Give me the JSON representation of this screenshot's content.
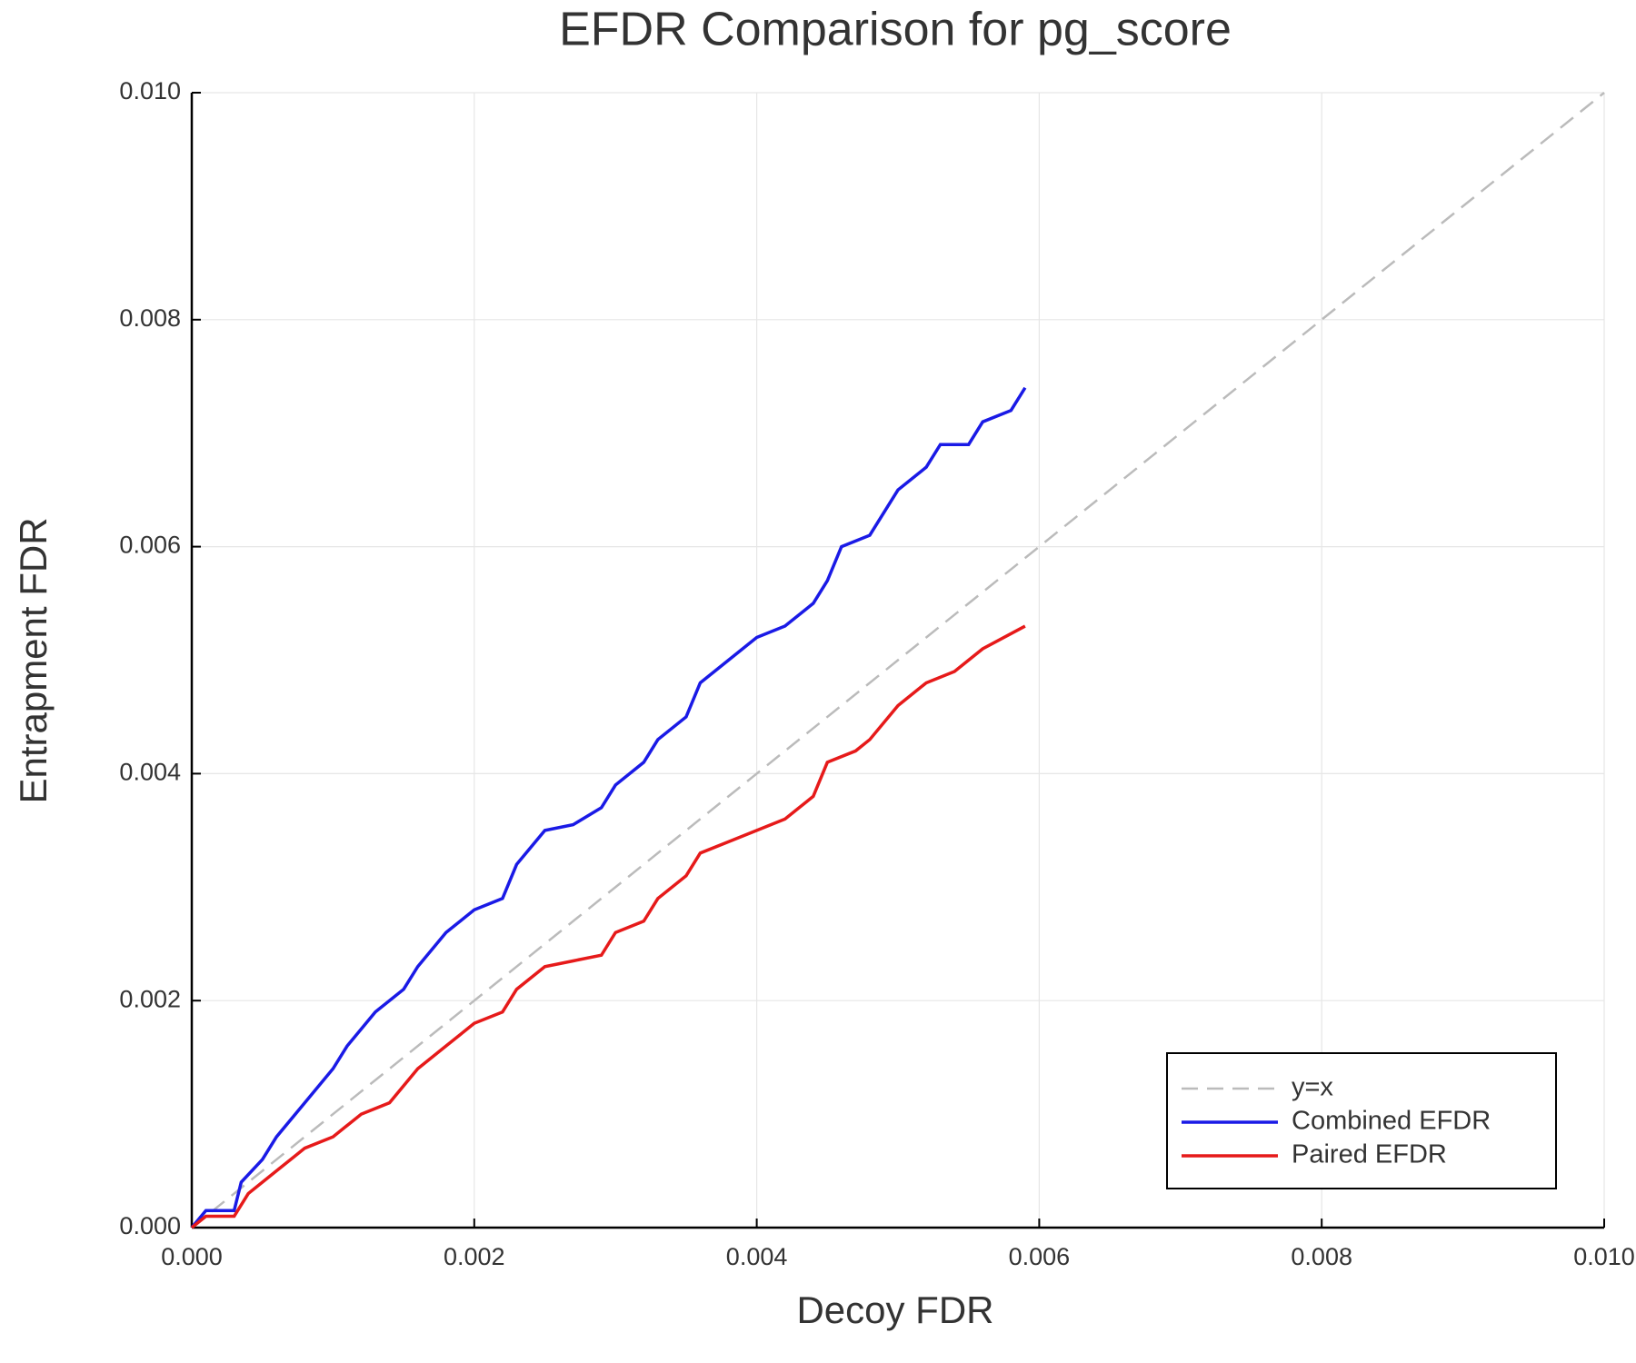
{
  "chart_data": {
    "type": "line",
    "title": "EFDR Comparison for pg_score",
    "x_label": "Decoy FDR",
    "y_label": "Entrapment FDR",
    "xlim": [
      0,
      0.01
    ],
    "ylim": [
      0,
      0.01
    ],
    "xticks": [
      {
        "value": 0,
        "label": "0.000"
      },
      0.002,
      0.004,
      0.006,
      0.008,
      {
        "value": 0.01,
        "label": "0.010"
      }
    ],
    "yticks": [
      {
        "value": 0,
        "label": "0.000"
      },
      0.002,
      0.004,
      0.006,
      0.008,
      {
        "value": 0.01,
        "label": "0.010"
      }
    ],
    "grid": true,
    "legend": "lower right",
    "series": [
      {
        "name": "y=x",
        "color": "#bbbbbb",
        "dashed": true,
        "x": [
          0,
          0.01
        ],
        "values": [
          0,
          0.01
        ]
      },
      {
        "name": "Combined EFDR",
        "color": "#1a1ae6",
        "dashed": false,
        "x": [
          0,
          0.0001,
          0.0003,
          0.00035,
          0.0005,
          0.0006,
          0.0008,
          0.001,
          0.0011,
          0.0013,
          0.0015,
          0.0016,
          0.0018,
          0.002,
          0.0022,
          0.0023,
          0.0025,
          0.0027,
          0.0029,
          0.003,
          0.0032,
          0.0033,
          0.0035,
          0.0036,
          0.0038,
          0.004,
          0.0042,
          0.0044,
          0.0045,
          0.0046,
          0.0048,
          0.005,
          0.0052,
          0.0053,
          0.0055,
          0.0056,
          0.0058,
          0.0059
        ],
        "values": [
          0,
          0.00015,
          0.00015,
          0.0004,
          0.0006,
          0.0008,
          0.0011,
          0.0014,
          0.0016,
          0.0019,
          0.0021,
          0.0023,
          0.0026,
          0.0028,
          0.0029,
          0.0032,
          0.0035,
          0.00355,
          0.0037,
          0.0039,
          0.0041,
          0.0043,
          0.0045,
          0.0048,
          0.005,
          0.0052,
          0.0053,
          0.0055,
          0.0057,
          0.006,
          0.0061,
          0.0065,
          0.0067,
          0.0069,
          0.0069,
          0.0071,
          0.0072,
          0.0074
        ]
      },
      {
        "name": "Paired EFDR",
        "color": "#e61a1a",
        "dashed": false,
        "x": [
          0,
          0.0001,
          0.0003,
          0.0004,
          0.0006,
          0.0008,
          0.001,
          0.0012,
          0.0014,
          0.0016,
          0.0018,
          0.002,
          0.0022,
          0.0023,
          0.0025,
          0.0027,
          0.0029,
          0.003,
          0.0032,
          0.0033,
          0.0035,
          0.0036,
          0.0038,
          0.004,
          0.0042,
          0.0044,
          0.0045,
          0.0047,
          0.0048,
          0.005,
          0.0052,
          0.0054,
          0.0056,
          0.0059
        ],
        "values": [
          0,
          0.0001,
          0.0001,
          0.0003,
          0.0005,
          0.0007,
          0.0008,
          0.001,
          0.0011,
          0.0014,
          0.0016,
          0.0018,
          0.0019,
          0.0021,
          0.0023,
          0.00235,
          0.0024,
          0.0026,
          0.0027,
          0.0029,
          0.0031,
          0.0033,
          0.0034,
          0.0035,
          0.0036,
          0.0038,
          0.0041,
          0.0042,
          0.0043,
          0.0046,
          0.0048,
          0.0049,
          0.0051,
          0.0053
        ]
      }
    ]
  }
}
